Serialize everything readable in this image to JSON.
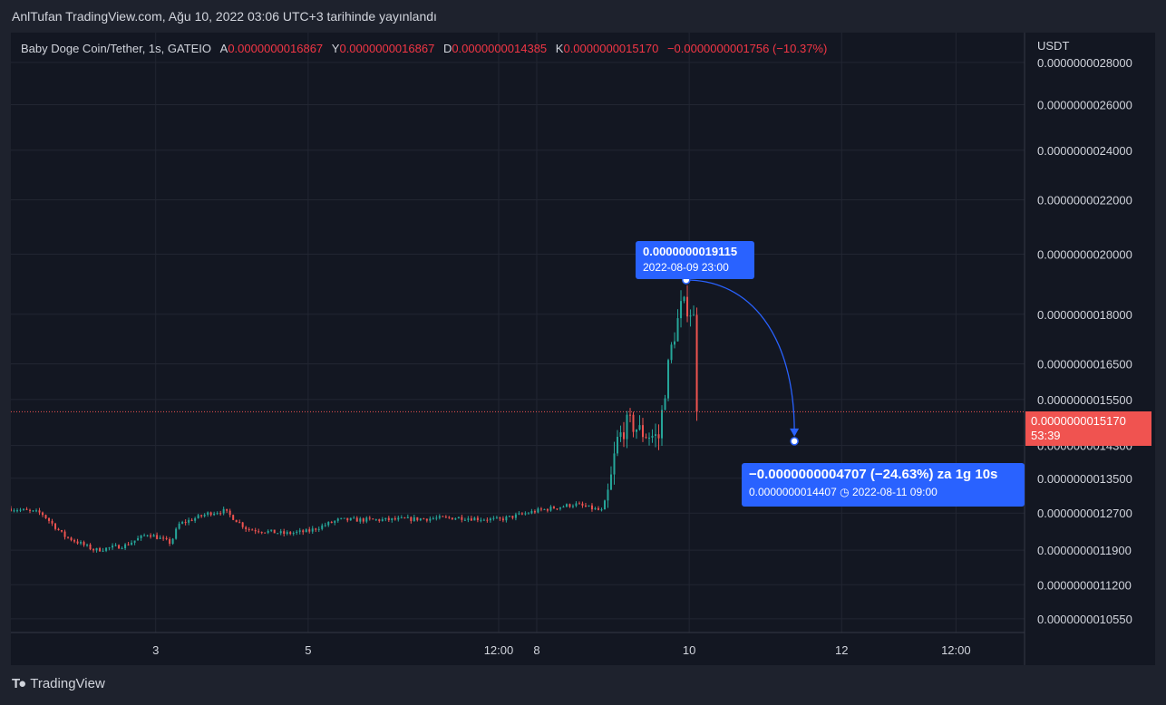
{
  "caption": "AnlTufan TradingView.com, Ağu 10, 2022 03:06 UTC+3 tarihinde yayınlandı",
  "legend": {
    "symbol": "Baby Doge Coin/Tether, 1s, GATEIO",
    "open_label": "A",
    "open": "0.0000000016867",
    "high_label": "Y",
    "high": "0.0000000016867",
    "low_label": "D",
    "low": "0.0000000014385",
    "close_label": "K",
    "close": "0.0000000015170",
    "change": "−0.0000000001756 (−10.37%)"
  },
  "footer": {
    "brand": "TradingView",
    "icon": "tradingview-logo-icon"
  },
  "price_tag": {
    "price": "0.0000000015170",
    "countdown": "53:39"
  },
  "callouts": {
    "high": {
      "price": "0.0000000019115",
      "date": "2022-08-09 23:00"
    },
    "change": {
      "headline": "−0.0000000004707 (−24.63%) za 1g 10s",
      "target": "0.0000000014407",
      "date": "2022-08-11  09:00",
      "icon": "clock-icon"
    }
  },
  "colors": {
    "up": "#26a69a",
    "down": "#ef5350",
    "accent": "#2962ff",
    "background": "#131722"
  },
  "chart_data": {
    "type": "candlestick",
    "currency": "USDT",
    "y_scale": "log",
    "y_ticks": [
      {
        "label": "0.0000000028000",
        "value": 2.8
      },
      {
        "label": "0.0000000026000",
        "value": 2.6
      },
      {
        "label": "0.0000000024000",
        "value": 2.4
      },
      {
        "label": "0.0000000022000",
        "value": 2.2
      },
      {
        "label": "0.0000000020000",
        "value": 2.0
      },
      {
        "label": "0.0000000018000",
        "value": 1.8
      },
      {
        "label": "0.0000000016500",
        "value": 1.65
      },
      {
        "label": "0.0000000015500",
        "value": 1.55
      },
      {
        "label": "0.0000000014300",
        "value": 1.43
      },
      {
        "label": "0.0000000013500",
        "value": 1.35
      },
      {
        "label": "0.0000000012700",
        "value": 1.27
      },
      {
        "label": "0.0000000011900",
        "value": 1.19
      },
      {
        "label": "0.0000000011200",
        "value": 1.12
      },
      {
        "label": "0.0000000010550",
        "value": 1.055
      }
    ],
    "x_ticks": [
      {
        "label": "3",
        "day": 3
      },
      {
        "label": "5",
        "day": 5
      },
      {
        "label": "12:00",
        "day": 7.5
      },
      {
        "label": "8",
        "day": 8
      },
      {
        "label": "10",
        "day": 10
      },
      {
        "label": "12",
        "day": 12
      },
      {
        "label": "12:00",
        "day": 13.5
      }
    ],
    "x_range_days": [
      1.1,
      14.4
    ],
    "y_range": [
      1.03,
      2.95
    ],
    "last_price": 1.517,
    "high_point": {
      "day": 9.96,
      "price": 1.9115
    },
    "projection_point": {
      "day": 11.38,
      "price": 1.4407
    },
    "price_path": [
      {
        "day": 1.1,
        "price": 1.28
      },
      {
        "day": 1.5,
        "price": 1.27
      },
      {
        "day": 1.8,
        "price": 1.22
      },
      {
        "day": 2.2,
        "price": 1.19
      },
      {
        "day": 2.6,
        "price": 1.2
      },
      {
        "day": 2.9,
        "price": 1.225
      },
      {
        "day": 3.2,
        "price": 1.205
      },
      {
        "day": 3.3,
        "price": 1.245
      },
      {
        "day": 3.7,
        "price": 1.27
      },
      {
        "day": 3.9,
        "price": 1.275
      },
      {
        "day": 4.2,
        "price": 1.235
      },
      {
        "day": 4.7,
        "price": 1.225
      },
      {
        "day": 5.0,
        "price": 1.23
      },
      {
        "day": 5.4,
        "price": 1.255
      },
      {
        "day": 6.0,
        "price": 1.255
      },
      {
        "day": 7.0,
        "price": 1.26
      },
      {
        "day": 7.5,
        "price": 1.255
      },
      {
        "day": 8.0,
        "price": 1.275
      },
      {
        "day": 8.5,
        "price": 1.29
      },
      {
        "day": 8.85,
        "price": 1.275
      },
      {
        "day": 8.95,
        "price": 1.32
      },
      {
        "day": 9.05,
        "price": 1.44
      },
      {
        "day": 9.2,
        "price": 1.49
      },
      {
        "day": 9.4,
        "price": 1.46
      },
      {
        "day": 9.6,
        "price": 1.45
      },
      {
        "day": 9.75,
        "price": 1.68
      },
      {
        "day": 9.9,
        "price": 1.83
      },
      {
        "day": 10.0,
        "price": 1.82
      },
      {
        "day": 10.1,
        "price": 1.76
      },
      {
        "day": 10.12,
        "price": 1.517
      }
    ]
  }
}
